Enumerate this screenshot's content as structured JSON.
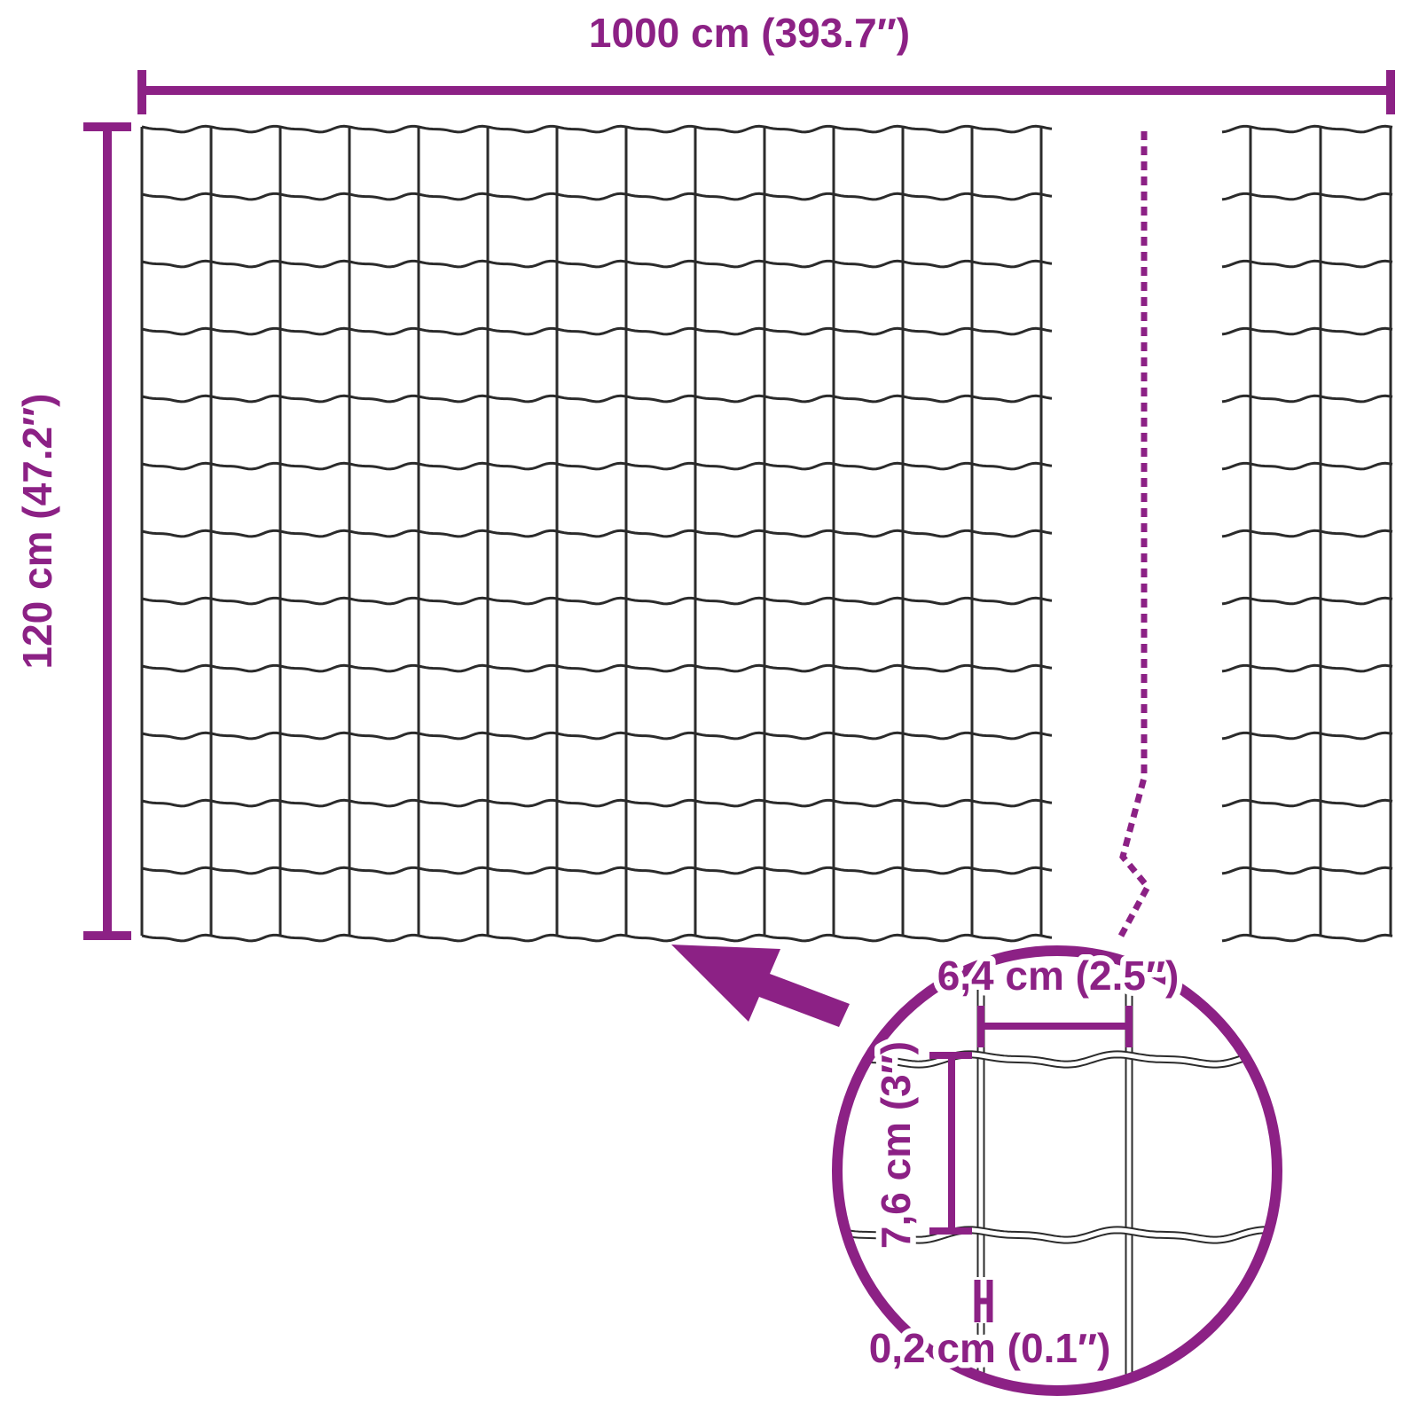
{
  "page": {
    "background_color": "#ffffff"
  },
  "diagram": {
    "type": "product-dimension-diagram",
    "subject": "wire-mesh-fence-panel",
    "accent_color": "#8c2185",
    "wire_color": "#2b2b2b",
    "labels": {
      "total_width": "1000 cm (393.7″)",
      "total_height": "120 cm (47.2″)",
      "cell_width": "6,4 cm (2.5″)",
      "cell_height": "7,6 cm (3″)",
      "wire_thickness": "0,2 cm (0.1″)"
    },
    "mesh": {
      "main_panel": {
        "columns": 13,
        "rows": 12
      },
      "right_panel": {
        "columns": 2
      },
      "detail": {
        "vertical_wires": 2,
        "horizontal_wires": 2
      }
    }
  }
}
